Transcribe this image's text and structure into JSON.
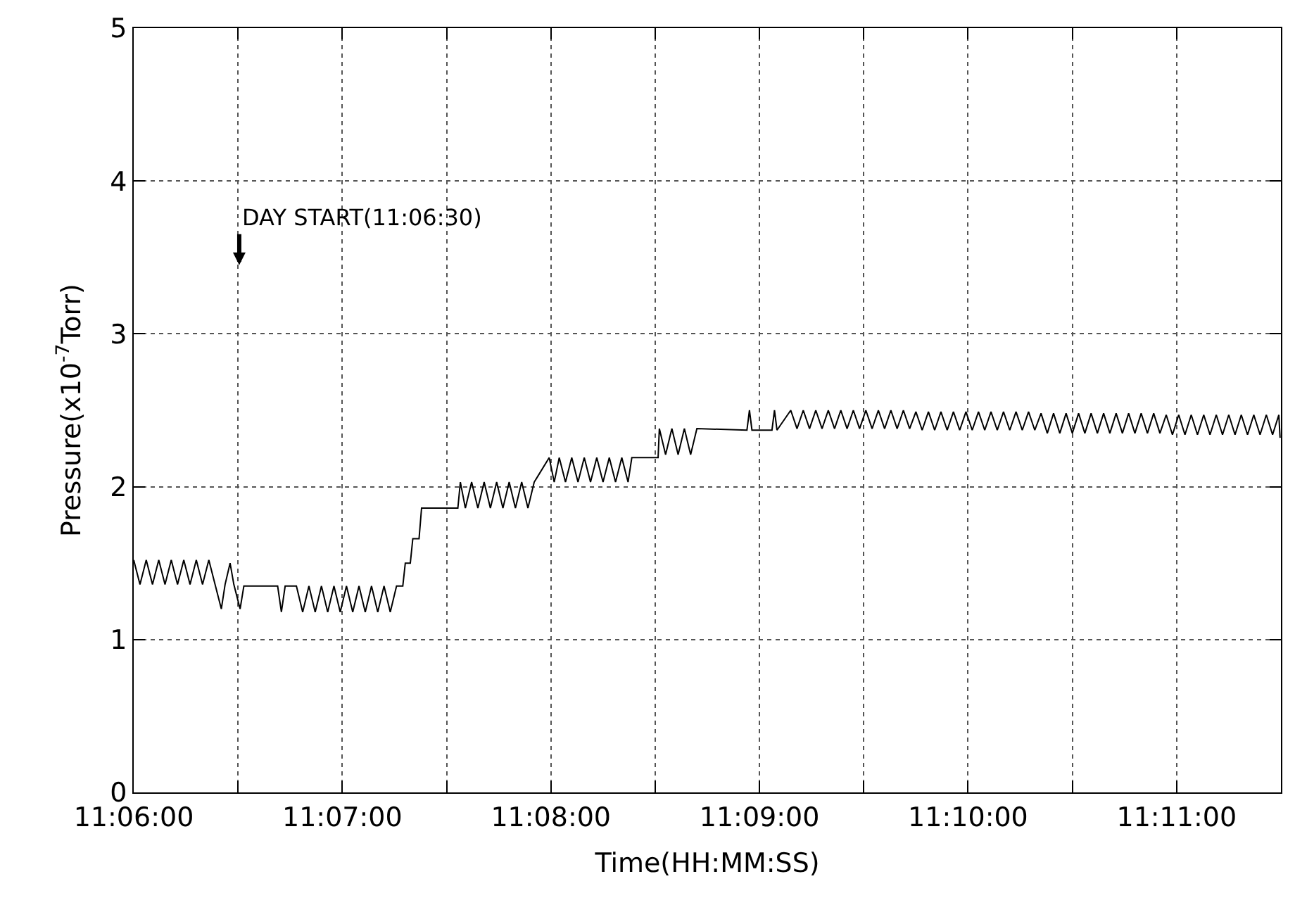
{
  "chart_data": {
    "type": "line",
    "xlabel": "Time(HH:MM:SS)",
    "ylabel": "Pressure(x10$^{-7}$Torr)",
    "xlim": [
      11.1,
      11.191667
    ],
    "xticks": [
      {
        "value": 11.1,
        "label": "11:06:00"
      },
      {
        "value": 11.108333,
        "label": null
      },
      {
        "value": 11.116667,
        "label": "11:07:00"
      },
      {
        "value": 11.125,
        "label": null
      },
      {
        "value": 11.133333,
        "label": "11:08:00"
      },
      {
        "value": 11.141667,
        "label": null
      },
      {
        "value": 11.15,
        "label": "11:09:00"
      },
      {
        "value": 11.158333,
        "label": null
      },
      {
        "value": 11.166667,
        "label": "11:10:00"
      },
      {
        "value": 11.175,
        "label": null
      },
      {
        "value": 11.183333,
        "label": "11:11:00"
      }
    ],
    "ylim": [
      0,
      5
    ],
    "yticks": [
      0,
      1,
      2,
      3,
      4,
      5
    ],
    "grid": true,
    "marker": "none",
    "line_style": "solid",
    "annotations": [
      "DAY START(11:06:30)"
    ],
    "series": [
      {
        "color": "#000000",
        "x": [
          11.1,
          11.1005,
          11.101,
          11.1015,
          11.102,
          11.1025,
          11.103,
          11.1035,
          11.104,
          11.1045,
          11.105,
          11.1055,
          11.106,
          11.1065,
          11.107,
          11.1073,
          11.1077,
          11.108,
          11.1085,
          11.1088,
          11.1115,
          11.1118,
          11.1121,
          11.113,
          11.1135,
          11.114,
          11.1145,
          11.115,
          11.1155,
          11.116,
          11.1165,
          11.117,
          11.1175,
          11.118,
          11.1185,
          11.119,
          11.1195,
          11.12,
          11.1205,
          11.121,
          11.1215,
          11.1217,
          11.1221,
          11.1223,
          11.1228,
          11.123,
          11.1259,
          11.1261,
          11.1265,
          11.127,
          11.1275,
          11.128,
          11.1285,
          11.129,
          11.1295,
          11.13,
          11.1305,
          11.131,
          11.1315,
          11.132,
          11.1332,
          11.1336,
          11.134,
          11.1345,
          11.135,
          11.1355,
          11.136,
          11.1365,
          11.137,
          11.1375,
          11.138,
          11.1385,
          11.139,
          11.1395,
          11.1398,
          11.1419,
          11.142,
          11.1425,
          11.143,
          11.1435,
          11.144,
          11.1445,
          11.145,
          11.149,
          11.1492,
          11.1494,
          11.151,
          11.1512,
          11.1514,
          11.1525,
          11.153,
          11.1535,
          11.154,
          11.1545,
          11.155,
          11.1555,
          11.156,
          11.1565,
          11.157,
          11.1575,
          11.158,
          11.1585,
          11.159,
          11.1595,
          11.16,
          11.1605,
          11.161,
          11.1615,
          11.162,
          11.1625,
          11.163,
          11.1635,
          11.164,
          11.1645,
          11.165,
          11.1655,
          11.166,
          11.1665,
          11.167,
          11.1675,
          11.168,
          11.1685,
          11.169,
          11.1695,
          11.17,
          11.1705,
          11.171,
          11.1715,
          11.172,
          11.1725,
          11.173,
          11.1735,
          11.174,
          11.1745,
          11.175,
          11.1755,
          11.176,
          11.1765,
          11.177,
          11.1775,
          11.178,
          11.1785,
          11.179,
          11.1795,
          11.18,
          11.1805,
          11.181,
          11.1815,
          11.182,
          11.1825,
          11.183,
          11.1835,
          11.184,
          11.1845,
          11.185,
          11.1855,
          11.186,
          11.1865,
          11.187,
          11.1875,
          11.188,
          11.1885,
          11.189,
          11.1895,
          11.19,
          11.1905,
          11.191,
          11.1915,
          11.1916
        ],
        "values": [
          1.52,
          1.36,
          1.52,
          1.36,
          1.52,
          1.36,
          1.52,
          1.36,
          1.52,
          1.36,
          1.52,
          1.36,
          1.52,
          1.36,
          1.2,
          1.36,
          1.5,
          1.36,
          1.2,
          1.35,
          1.35,
          1.18,
          1.35,
          1.35,
          1.18,
          1.35,
          1.18,
          1.35,
          1.18,
          1.35,
          1.18,
          1.35,
          1.18,
          1.35,
          1.18,
          1.35,
          1.18,
          1.35,
          1.18,
          1.35,
          1.35,
          1.5,
          1.5,
          1.66,
          1.66,
          1.86,
          1.86,
          2.03,
          1.86,
          2.03,
          1.86,
          2.03,
          1.86,
          2.03,
          1.86,
          2.03,
          1.86,
          2.03,
          1.86,
          2.03,
          2.19,
          2.03,
          2.19,
          2.03,
          2.19,
          2.03,
          2.19,
          2.03,
          2.19,
          2.03,
          2.19,
          2.03,
          2.19,
          2.03,
          2.19,
          2.19,
          2.38,
          2.21,
          2.38,
          2.21,
          2.38,
          2.21,
          2.38,
          2.37,
          2.5,
          2.37,
          2.37,
          2.5,
          2.37,
          2.5,
          2.38,
          2.5,
          2.38,
          2.5,
          2.38,
          2.5,
          2.38,
          2.5,
          2.38,
          2.5,
          2.38,
          2.5,
          2.38,
          2.5,
          2.38,
          2.5,
          2.38,
          2.5,
          2.38,
          2.49,
          2.37,
          2.49,
          2.37,
          2.49,
          2.37,
          2.49,
          2.37,
          2.49,
          2.37,
          2.49,
          2.37,
          2.49,
          2.37,
          2.49,
          2.37,
          2.49,
          2.37,
          2.49,
          2.37,
          2.48,
          2.35,
          2.48,
          2.35,
          2.48,
          2.35,
          2.48,
          2.35,
          2.48,
          2.35,
          2.48,
          2.35,
          2.48,
          2.35,
          2.48,
          2.35,
          2.48,
          2.35,
          2.48,
          2.35,
          2.47,
          2.34,
          2.47,
          2.34,
          2.47,
          2.34,
          2.47,
          2.34,
          2.47,
          2.34,
          2.47,
          2.34,
          2.47,
          2.34,
          2.47,
          2.34,
          2.47,
          2.34,
          2.47,
          2.32
        ]
      }
    ]
  }
}
